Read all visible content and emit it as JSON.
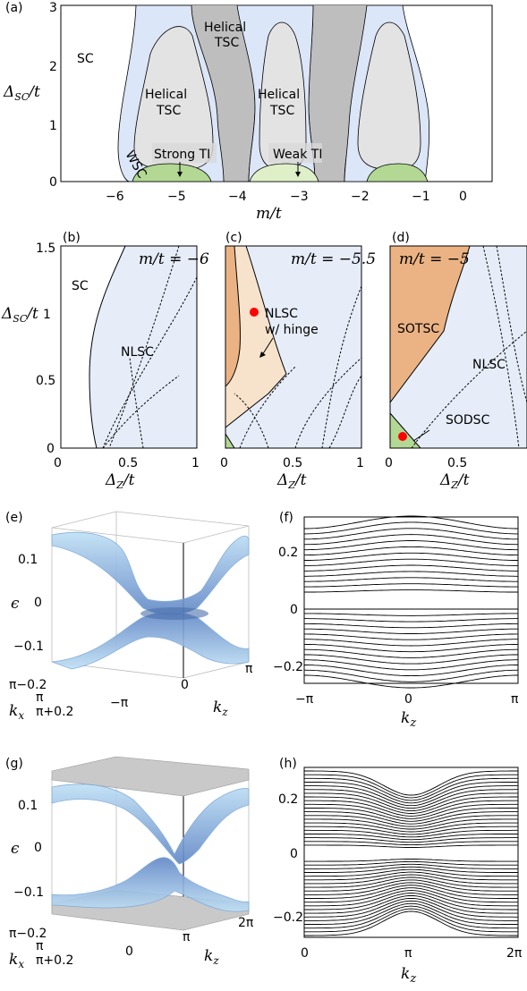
{
  "colors": {
    "helical_tsc": "#bebebe",
    "helical_tsc_light": "#e3e3e3",
    "wsc": "#dbe6f8",
    "nlsc": "#e6edf9",
    "ti_green": "#b2d894",
    "ti_light_green": "#dff0c9",
    "sotsc": "#ebb384",
    "nlsc_hinge": "#f7e2cb",
    "red_marker": "#ff0000",
    "band_fill": "#8fb3e8",
    "band_edge": "#7aa7d9"
  },
  "chart_data": [
    {
      "panel": "(a)",
      "type": "area",
      "xlabel": "m/t",
      "ylabel": "Δ_SC/t",
      "xlim": [
        -6.5,
        0.5
      ],
      "ylim": [
        0,
        3
      ],
      "xticks": [
        "−6",
        "−5",
        "−4",
        "−3",
        "−2",
        "−1",
        "0"
      ],
      "yticks": [
        "0",
        "1",
        "2",
        "3"
      ],
      "regions": [
        "SC",
        "Helical TSC",
        "Helical TSC",
        "Helical TSC",
        "WSC",
        "Strong TI",
        "Weak TI"
      ]
    },
    {
      "panel": "(b)",
      "type": "area",
      "annotation": "m/t = −6",
      "xlabel": "Δ_Z/t",
      "ylabel": "Δ_SC/t",
      "xlim": [
        0,
        1
      ],
      "ylim": [
        0,
        1.5
      ],
      "xticks": [
        "0",
        "0.5",
        "1"
      ],
      "yticks": [
        "0",
        "0.5",
        "1",
        "1.5"
      ],
      "regions": [
        "SC",
        "NLSC"
      ]
    },
    {
      "panel": "(c)",
      "type": "area",
      "annotation": "m/t = −5.5",
      "xlabel": "Δ_Z/t",
      "xlim": [
        0,
        1
      ],
      "ylim": [
        0,
        1.5
      ],
      "xticks": [
        "0",
        "0.5",
        "1"
      ],
      "regions": [
        "NLSC",
        "w/ hinge"
      ],
      "marker": {
        "x": 0.2,
        "y": 1.0
      }
    },
    {
      "panel": "(d)",
      "type": "area",
      "annotation": "m/t = −5",
      "xlabel": "Δ_Z/t",
      "xlim": [
        0,
        1
      ],
      "ylim": [
        0,
        1.5
      ],
      "xticks": [
        "0",
        "0.5",
        "1"
      ],
      "regions": [
        "SOTSC",
        "NLSC",
        "SODSC"
      ],
      "marker": {
        "x": 0.1,
        "y": 0.08
      }
    },
    {
      "panel": "(e)",
      "type": "surface",
      "zlabel": "ϵ",
      "xlabel": "k_x",
      "ylabel": "k_z",
      "zticks": [
        "0.1",
        "0",
        "−0.1"
      ],
      "kx_ticks": [
        "π−0.2",
        "π",
        "π+0.2"
      ],
      "kz_ticks": [
        "−π",
        "0",
        "π"
      ]
    },
    {
      "panel": "(f)",
      "type": "line",
      "xlabel": "k_z",
      "xlim": [
        -3.1416,
        3.1416
      ],
      "ylim": [
        -0.3,
        0.3
      ],
      "xticks": [
        "−π",
        "0",
        "π"
      ],
      "yticks": [
        "0.2",
        "0",
        "−0.2"
      ]
    },
    {
      "panel": "(g)",
      "type": "surface",
      "zlabel": "ϵ",
      "xlabel": "k_x",
      "ylabel": "k_z",
      "zticks": [
        "0.1",
        "0",
        "−0.1"
      ],
      "kx_ticks": [
        "π−0.2",
        "π",
        "π+0.2"
      ],
      "kz_ticks": [
        "0",
        "π",
        "2π"
      ]
    },
    {
      "panel": "(h)",
      "type": "line",
      "xlabel": "k_z",
      "xlim": [
        0,
        6.2832
      ],
      "ylim": [
        -0.3,
        0.3
      ],
      "xticks": [
        "0",
        "π",
        "2π"
      ],
      "yticks": [
        "0.2",
        "0",
        "−0.2"
      ]
    }
  ],
  "ylabel_a": "3"
}
